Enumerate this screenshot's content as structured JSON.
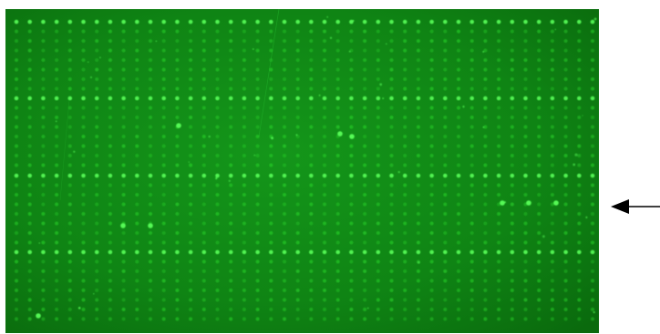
{
  "image": {
    "subject": "fluorescence-microarray-scan",
    "background_color": "#0d7a0d",
    "spot_color": "#2ee62e",
    "bright_spot_color": "#59ff59",
    "columns": 44,
    "rows_per_block": 8,
    "blocks": 4
  },
  "annotation": {
    "arrow_icon": "arrow-left-icon",
    "arrow_color": "#000000",
    "points_to": "block-3-lower-rows"
  }
}
